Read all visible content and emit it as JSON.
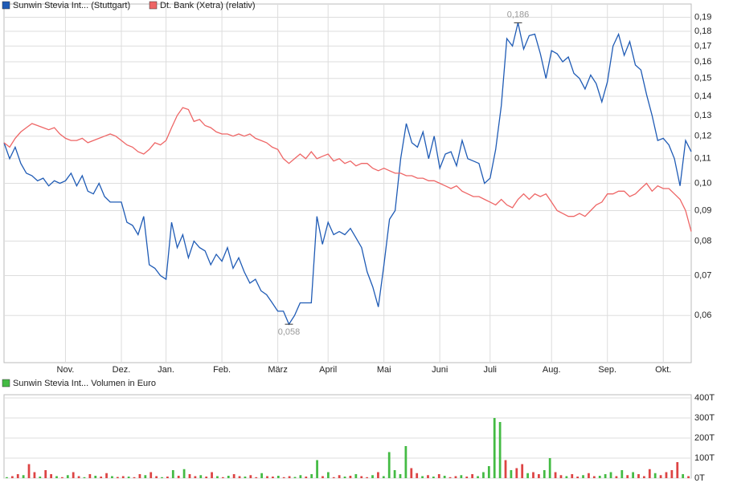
{
  "chart_data": [
    {
      "type": "line",
      "log_scale": true,
      "grid": true,
      "categories": [
        null,
        null,
        null,
        null,
        null,
        null,
        null,
        null,
        null,
        null,
        null,
        "Nov.",
        null,
        null,
        null,
        null,
        null,
        null,
        null,
        null,
        null,
        "Dez.",
        null,
        null,
        null,
        null,
        null,
        null,
        null,
        "Jan.",
        null,
        null,
        null,
        null,
        null,
        null,
        null,
        null,
        null,
        "Feb.",
        null,
        null,
        null,
        null,
        null,
        null,
        null,
        null,
        null,
        "März",
        null,
        null,
        null,
        null,
        null,
        null,
        null,
        null,
        "April",
        null,
        null,
        null,
        null,
        null,
        null,
        null,
        null,
        null,
        "Mai",
        null,
        null,
        null,
        null,
        null,
        null,
        null,
        null,
        null,
        "Juni",
        null,
        null,
        null,
        null,
        null,
        null,
        null,
        null,
        "Juli",
        null,
        null,
        null,
        null,
        null,
        null,
        null,
        null,
        null,
        null,
        "Aug.",
        null,
        null,
        null,
        null,
        null,
        null,
        null,
        null,
        null,
        "Sep.",
        null,
        null,
        null,
        null,
        null,
        null,
        null,
        null,
        null,
        "Okt.",
        null,
        null,
        null,
        null,
        null
      ],
      "series": [
        {
          "name": "Sunwin Stevia Int... (Stuttgart)",
          "color": "#1f5bb5",
          "values": [
            0.117,
            0.11,
            0.115,
            0.108,
            0.104,
            0.103,
            0.101,
            0.102,
            0.099,
            0.101,
            0.1,
            0.101,
            0.104,
            0.099,
            0.103,
            0.097,
            0.096,
            0.1,
            0.095,
            0.093,
            0.093,
            0.093,
            0.086,
            0.085,
            0.082,
            0.088,
            0.073,
            0.072,
            0.07,
            0.069,
            0.086,
            0.078,
            0.082,
            0.075,
            0.08,
            0.078,
            0.077,
            0.073,
            0.076,
            0.074,
            0.078,
            0.072,
            0.075,
            0.071,
            0.068,
            0.069,
            0.066,
            0.065,
            0.063,
            0.061,
            0.061,
            0.058,
            0.06,
            0.063,
            0.063,
            0.063,
            0.088,
            0.079,
            0.086,
            0.082,
            0.083,
            0.082,
            0.084,
            0.081,
            0.078,
            0.071,
            0.067,
            0.062,
            0.073,
            0.087,
            0.09,
            0.11,
            0.126,
            0.117,
            0.115,
            0.122,
            0.11,
            0.12,
            0.106,
            0.112,
            0.113,
            0.107,
            0.118,
            0.11,
            0.109,
            0.108,
            0.1,
            0.102,
            0.114,
            0.135,
            0.175,
            0.17,
            0.186,
            0.168,
            0.177,
            0.178,
            0.165,
            0.15,
            0.167,
            0.165,
            0.16,
            0.163,
            0.153,
            0.15,
            0.144,
            0.152,
            0.147,
            0.137,
            0.148,
            0.17,
            0.178,
            0.164,
            0.173,
            0.158,
            0.155,
            0.141,
            0.13,
            0.118,
            0.119,
            0.116,
            0.11,
            0.099,
            0.118,
            0.113
          ]
        },
        {
          "name": "Dt. Bank (Xetra) (relativ)",
          "color": "#ee6666",
          "values": [
            0.117,
            0.115,
            0.119,
            0.122,
            0.124,
            0.126,
            0.125,
            0.124,
            0.123,
            0.124,
            0.121,
            0.119,
            0.118,
            0.118,
            0.119,
            0.117,
            0.118,
            0.119,
            0.12,
            0.121,
            0.12,
            0.118,
            0.116,
            0.115,
            0.113,
            0.112,
            0.114,
            0.117,
            0.116,
            0.118,
            0.124,
            0.13,
            0.134,
            0.133,
            0.127,
            0.128,
            0.125,
            0.124,
            0.122,
            0.121,
            0.121,
            0.12,
            0.121,
            0.12,
            0.121,
            0.119,
            0.118,
            0.117,
            0.115,
            0.114,
            0.11,
            0.108,
            0.11,
            0.112,
            0.11,
            0.113,
            0.11,
            0.111,
            0.112,
            0.109,
            0.11,
            0.108,
            0.109,
            0.107,
            0.108,
            0.108,
            0.106,
            0.105,
            0.106,
            0.105,
            0.104,
            0.104,
            0.103,
            0.103,
            0.102,
            0.102,
            0.101,
            0.101,
            0.1,
            0.099,
            0.098,
            0.099,
            0.097,
            0.096,
            0.095,
            0.095,
            0.094,
            0.093,
            0.092,
            0.094,
            0.092,
            0.091,
            0.094,
            0.096,
            0.094,
            0.096,
            0.095,
            0.096,
            0.093,
            0.09,
            0.089,
            0.088,
            0.088,
            0.089,
            0.088,
            0.09,
            0.092,
            0.093,
            0.096,
            0.096,
            0.097,
            0.097,
            0.095,
            0.096,
            0.098,
            0.1,
            0.097,
            0.099,
            0.098,
            0.098,
            0.096,
            0.094,
            0.09,
            0.083
          ]
        }
      ],
      "annotations": [
        "0,186",
        "0,058"
      ],
      "ylim": [
        0.05,
        0.2
      ],
      "yticks": [
        {
          "value": 0.06,
          "label": "0,06"
        },
        {
          "value": 0.07,
          "label": "0,07"
        },
        {
          "value": 0.08,
          "label": "0,08"
        },
        {
          "value": 0.09,
          "label": "0,09"
        },
        {
          "value": 0.1,
          "label": "0,10"
        },
        {
          "value": 0.11,
          "label": "0,11"
        },
        {
          "value": 0.12,
          "label": "0,12"
        },
        {
          "value": 0.13,
          "label": "0,13"
        },
        {
          "value": 0.14,
          "label": "0,14"
        },
        {
          "value": 0.15,
          "label": "0,15"
        },
        {
          "value": 0.16,
          "label": "0,16"
        },
        {
          "value": 0.17,
          "label": "0,17"
        },
        {
          "value": 0.18,
          "label": "0,18"
        },
        {
          "value": 0.19,
          "label": "0,19"
        }
      ]
    },
    {
      "type": "bar",
      "grid": true,
      "series": [
        {
          "name": "Sunwin Stevia Int... Volumen in Euro",
          "color": "#44bb44",
          "values": [
            5000,
            10000,
            20000,
            15000,
            70000,
            30000,
            8000,
            40000,
            20000,
            10000,
            5000,
            15000,
            30000,
            10000,
            5000,
            20000,
            12000,
            8000,
            25000,
            10000,
            6000,
            10000,
            8000,
            5000,
            20000,
            15000,
            30000,
            10000,
            5000,
            8000,
            40000,
            12000,
            45000,
            20000,
            10000,
            15000,
            8000,
            30000,
            10000,
            5000,
            12000,
            20000,
            10000,
            8000,
            15000,
            5000,
            25000,
            10000,
            8000,
            12000,
            5000,
            10000,
            6000,
            15000,
            8000,
            20000,
            90000,
            10000,
            30000,
            5000,
            15000,
            8000,
            12000,
            20000,
            10000,
            5000,
            15000,
            30000,
            10000,
            130000,
            40000,
            20000,
            160000,
            50000,
            25000,
            10000,
            15000,
            8000,
            20000,
            12000,
            5000,
            10000,
            15000,
            8000,
            20000,
            10000,
            30000,
            60000,
            300000,
            280000,
            90000,
            40000,
            50000,
            70000,
            25000,
            30000,
            20000,
            40000,
            100000,
            30000,
            15000,
            10000,
            20000,
            8000,
            15000,
            25000,
            10000,
            12000,
            20000,
            30000,
            10000,
            40000,
            15000,
            30000,
            20000,
            10000,
            45000,
            25000,
            15000,
            30000,
            40000,
            80000,
            20000,
            10000
          ],
          "colors": [
            "#44bb44",
            "#dd4444",
            "#dd4444",
            "#44bb44",
            "#dd4444",
            "#dd4444",
            "#44bb44",
            "#dd4444",
            "#dd4444",
            "#44bb44",
            "#dd4444",
            "#44bb44",
            "#dd4444",
            "#dd4444",
            "#44bb44",
            "#dd4444",
            "#44bb44",
            "#dd4444",
            "#dd4444",
            "#44bb44",
            "#dd4444",
            "#dd4444",
            "#44bb44",
            "#dd4444",
            "#dd4444",
            "#44bb44",
            "#dd4444",
            "#dd4444",
            "#44bb44",
            "#dd4444",
            "#44bb44",
            "#dd4444",
            "#44bb44",
            "#dd4444",
            "#dd4444",
            "#44bb44",
            "#dd4444",
            "#dd4444",
            "#44bb44",
            "#dd4444",
            "#44bb44",
            "#dd4444",
            "#dd4444",
            "#44bb44",
            "#dd4444",
            "#dd4444",
            "#44bb44",
            "#dd4444",
            "#dd4444",
            "#44bb44",
            "#dd4444",
            "#dd4444",
            "#44bb44",
            "#44bb44",
            "#dd4444",
            "#44bb44",
            "#44bb44",
            "#dd4444",
            "#44bb44",
            "#dd4444",
            "#dd4444",
            "#44bb44",
            "#dd4444",
            "#44bb44",
            "#dd4444",
            "#dd4444",
            "#44bb44",
            "#dd4444",
            "#44bb44",
            "#44bb44",
            "#44bb44",
            "#44bb44",
            "#44bb44",
            "#dd4444",
            "#dd4444",
            "#44bb44",
            "#dd4444",
            "#44bb44",
            "#dd4444",
            "#44bb44",
            "#dd4444",
            "#dd4444",
            "#44bb44",
            "#dd4444",
            "#dd4444",
            "#44bb44",
            "#44bb44",
            "#44bb44",
            "#44bb44",
            "#44bb44",
            "#dd4444",
            "#44bb44",
            "#dd4444",
            "#dd4444",
            "#44bb44",
            "#dd4444",
            "#dd4444",
            "#44bb44",
            "#44bb44",
            "#dd4444",
            "#dd4444",
            "#44bb44",
            "#dd4444",
            "#dd4444",
            "#44bb44",
            "#dd4444",
            "#dd4444",
            "#44bb44",
            "#44bb44",
            "#44bb44",
            "#dd4444",
            "#44bb44",
            "#dd4444",
            "#44bb44",
            "#dd4444",
            "#dd4444",
            "#dd4444",
            "#44bb44",
            "#dd4444",
            "#dd4444",
            "#dd4444",
            "#dd4444",
            "#44bb44",
            "#dd4444"
          ]
        }
      ],
      "ylim": [
        0,
        400000
      ],
      "yticks": [
        {
          "value": 0,
          "label": "0T"
        },
        {
          "value": 100000,
          "label": "100T"
        },
        {
          "value": 200000,
          "label": "200T"
        },
        {
          "value": 300000,
          "label": "300T"
        },
        {
          "value": 400000,
          "label": "400T"
        }
      ]
    }
  ]
}
